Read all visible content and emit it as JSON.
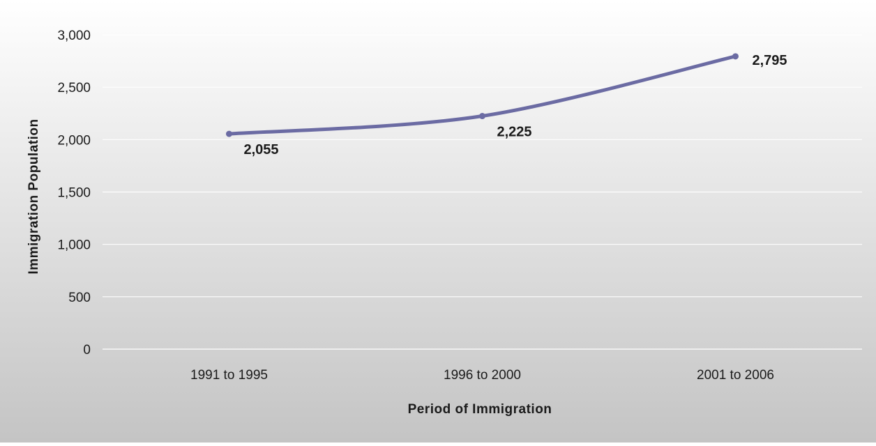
{
  "chart_data": {
    "type": "line",
    "title": "",
    "xlabel": "Period of Immigration",
    "ylabel": "Immigration Population",
    "categories": [
      "1991 to 1995",
      "1996 to 2000",
      "2001 to 2006"
    ],
    "series": [
      {
        "values": [
          2055,
          2225,
          2795
        ],
        "data_labels": [
          "2,055",
          "2,225",
          "2,795"
        ]
      }
    ],
    "ylim": [
      0,
      3000
    ],
    "yticks": [
      0,
      500,
      1000,
      1500,
      2000,
      2500,
      3000
    ],
    "ytick_labels": [
      "0",
      "500",
      "1,000",
      "1,500",
      "2,000",
      "2,500",
      "3,000"
    ],
    "grid": true,
    "legend": "none",
    "smooth": true,
    "colors": {
      "line": "#6b6ba3",
      "background_top": "#ffffff",
      "background_bottom": "#c4c4c4",
      "gridline": "#ffffff"
    }
  }
}
